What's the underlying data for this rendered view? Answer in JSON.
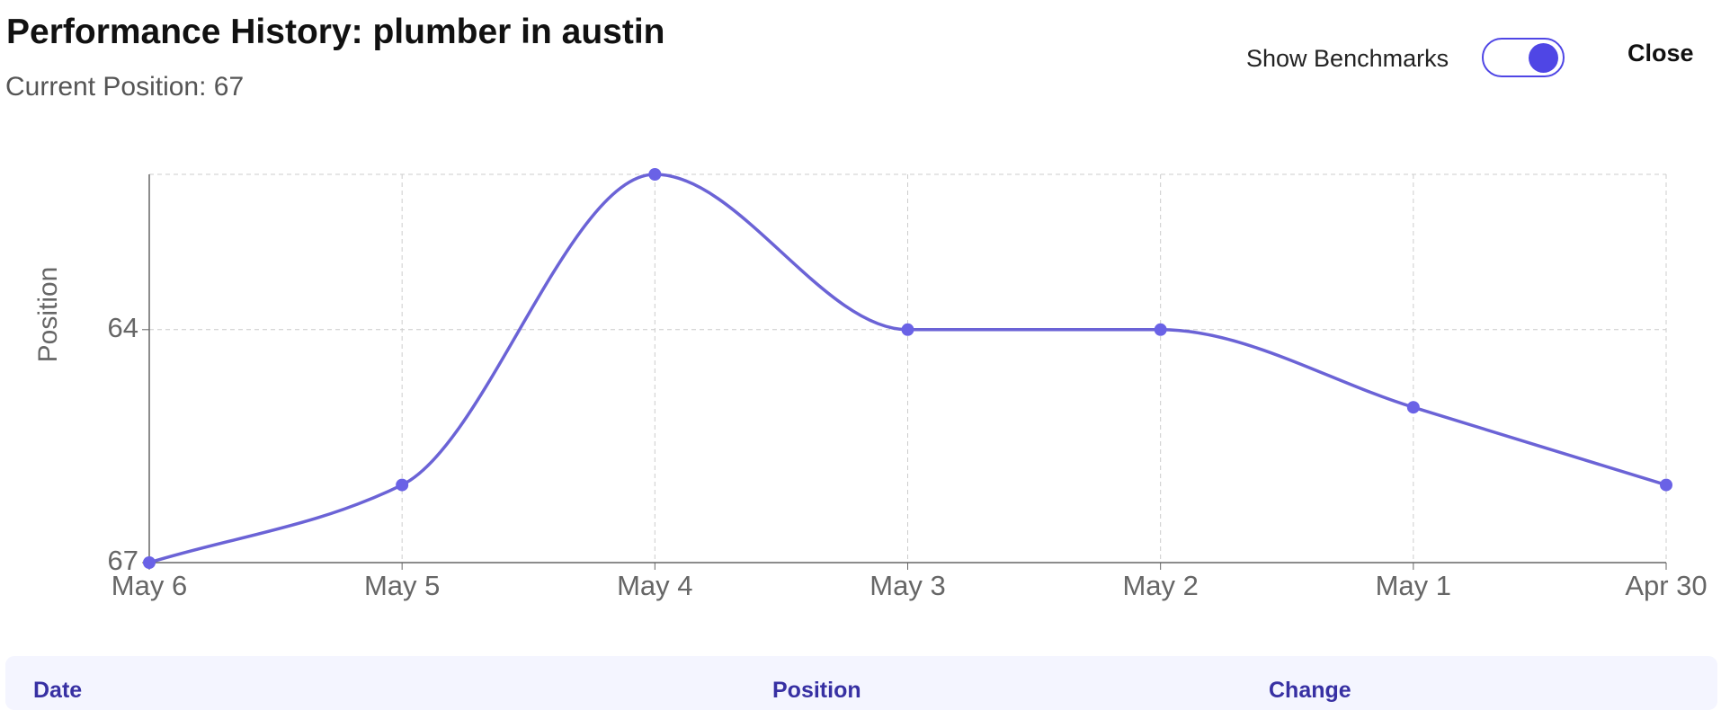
{
  "chart_data": {
    "type": "line",
    "title": "Performance History: plumber in austin",
    "subtitle": "Current Position: 67",
    "y_label": "Position",
    "categories": [
      "May 6",
      "May 5",
      "May 4",
      "May 3",
      "May 2",
      "May 1",
      "Apr 30"
    ],
    "series": [
      {
        "name": "Position",
        "color": "#6b63d6",
        "values": [
          67,
          66,
          62,
          64,
          64,
          65,
          66
        ]
      }
    ],
    "ylim": [
      67,
      62
    ],
    "yticks": [
      64,
      67
    ],
    "grid": true
  },
  "controls": {
    "toggle_label": "Show Benchmarks",
    "close": "Close"
  },
  "table": {
    "headers": [
      "Date",
      "Position",
      "Change"
    ]
  }
}
